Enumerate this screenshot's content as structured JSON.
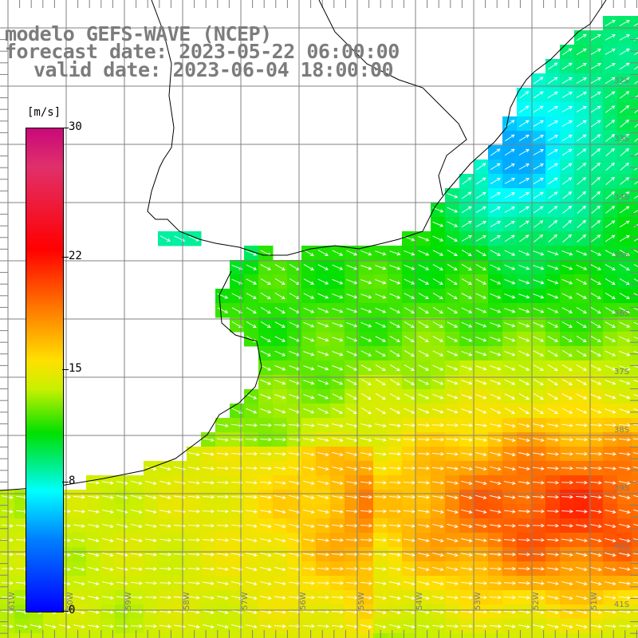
{
  "title": {
    "line1": "modelo GEFS-WAVE (NCEP)",
    "line2": "forecast date: 2023-05-22 06:00:00",
    "line3": "valid date: 2023-06-04 18:00:00"
  },
  "legend": {
    "unit": "[m/s]",
    "min": 0,
    "max": 30,
    "ticks": [
      {
        "label": "30",
        "value": 30
      },
      {
        "label": "22",
        "value": 22
      },
      {
        "label": "15",
        "value": 15
      },
      {
        "label": "8",
        "value": 8
      },
      {
        "label": "0",
        "value": 0
      }
    ],
    "colors": [
      "#0000ff",
      "#0080ff",
      "#00ffff",
      "#00ee90",
      "#00e000",
      "#c8f000",
      "#ffe000",
      "#ff8000",
      "#ff0000",
      "#e0306a",
      "#c8097a"
    ]
  },
  "map": {
    "variable": "wind speed",
    "lat_labels": [
      "32S",
      "33S",
      "34S",
      "35S",
      "36S",
      "37S",
      "38S",
      "39S",
      "40S",
      "41S"
    ],
    "lon_labels": [
      "61W",
      "60W",
      "59W",
      "58W",
      "57W",
      "56W",
      "55W",
      "54W",
      "53W",
      "52W",
      "51W"
    ],
    "colors": {
      "land": "#ffffff",
      "grid": "#808080",
      "coast": "#000000",
      "arrow": "#ffffff",
      "title": "#7c7c7c"
    }
  }
}
